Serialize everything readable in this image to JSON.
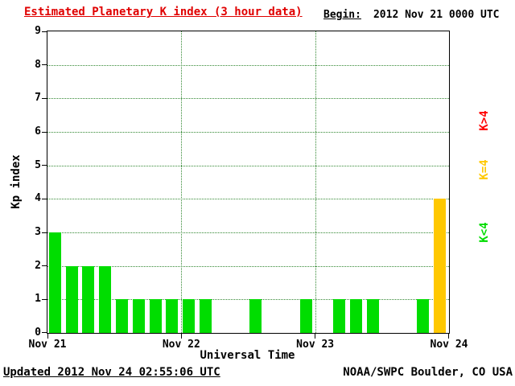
{
  "chart_data": {
    "type": "bar",
    "title": "Estimated Planetary K index (3 hour data)",
    "xlabel": "Universal Time",
    "ylabel": "Kp index",
    "ylim": [
      0,
      9
    ],
    "yticks": [
      0,
      1,
      2,
      3,
      4,
      5,
      6,
      7,
      8,
      9
    ],
    "x_day_labels": [
      "Nov 21",
      "Nov 22",
      "Nov 23",
      "Nov 24"
    ],
    "interval_hours": 3,
    "bars": [
      {
        "date": "2012 Nov 21",
        "kp": [
          3,
          2,
          2,
          2,
          1,
          1,
          1,
          1
        ]
      },
      {
        "date": "2012 Nov 22",
        "kp": [
          1,
          1,
          0,
          0,
          1,
          0,
          0,
          1
        ]
      },
      {
        "date": "2012 Nov 23",
        "kp": [
          0,
          1,
          1,
          1,
          0,
          0,
          1,
          4
        ]
      }
    ],
    "colors": {
      "below_4": "#00dd00",
      "equal_4": "#ffc800",
      "above_4": "#ff0000"
    },
    "legend": [
      {
        "label": "K>4",
        "color": "#ff0000"
      },
      {
        "label": "K=4",
        "color": "#ffc800"
      },
      {
        "label": "K<4",
        "color": "#00dd00"
      }
    ],
    "grid": {
      "horizontal": "dotted at each Kp integer",
      "vertical": "dotted at day boundaries"
    }
  },
  "begin": {
    "prefix": "Begin:",
    "value": "2012 Nov 21 0000 UTC"
  },
  "footer": {
    "updated": "Updated 2012 Nov 24 02:55:06 UTC",
    "source": "NOAA/SWPC Boulder, CO USA"
  }
}
